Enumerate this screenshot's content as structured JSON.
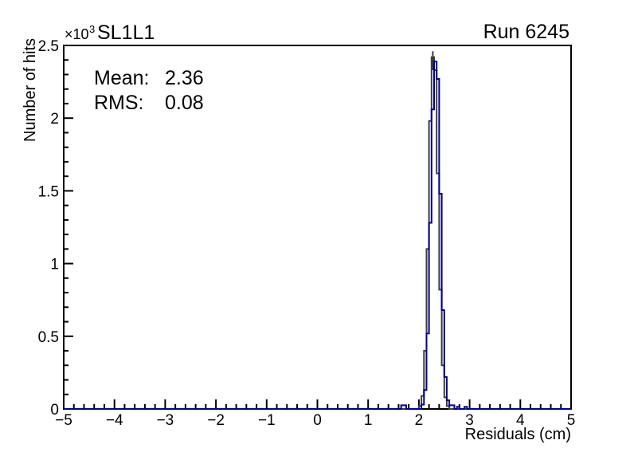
{
  "frame": {
    "background": "#ffffff",
    "axis_color": "#000000"
  },
  "header": {
    "title": "SL1L1",
    "run_label": "Run 6245",
    "y_multiplier_base": "×10",
    "y_multiplier_exp": "3"
  },
  "stats": {
    "mean_label": "Mean:",
    "mean_value": "2.36",
    "rms_label": "RMS:",
    "rms_value": "0.08"
  },
  "chart_data": {
    "type": "bar",
    "subtype": "step-histogram",
    "title": "SL1L1",
    "corner_label": "Run 6245",
    "xlabel": "Residuals (cm)",
    "ylabel": "Number of hits",
    "y_axis_multiplier": "×10^3",
    "xlim": [
      -5,
      5
    ],
    "ylim": [
      0,
      2500
    ],
    "grid": false,
    "legend": null,
    "x_major_tick_step": 1,
    "x_minor_tick_step": 0.2,
    "y_major_tick_step": 500,
    "y_minor_tick_step": 100,
    "x_tick_values": [
      -5,
      -4,
      -3,
      -2,
      -1,
      0,
      1,
      2,
      3,
      4,
      5
    ],
    "x_tick_labels": [
      "−5",
      "−4",
      "−3",
      "−2",
      "−1",
      "0",
      "1",
      "2",
      "3",
      "4",
      "5"
    ],
    "y_tick_values": [
      0,
      500,
      1000,
      1500,
      2000,
      2500
    ],
    "y_tick_labels": [
      "0",
      "0.5",
      "1",
      "1.5",
      "2",
      "2.5"
    ],
    "stats": {
      "mean": 2.36,
      "rms": 0.08
    },
    "series": [
      {
        "name": "overlay-dark",
        "color": "#3d3d3d",
        "line_width": 2,
        "bin_width": 0.05,
        "first_bin_left_edge": 2.0,
        "values": [
          20,
          90,
          400,
          1100,
          1980,
          2420,
          2330,
          1620,
          820,
          300,
          80,
          20
        ],
        "error_bar": {
          "x": 2.275,
          "y_low": 2330,
          "y_high": 2460
        }
      },
      {
        "name": "main-blue",
        "color": "#00008a",
        "line_width": 2,
        "bin_width": 0.05,
        "first_bin_left_edge": 1.65,
        "values": [
          25,
          25,
          0,
          0,
          0,
          0,
          0,
          0,
          30,
          130,
          520,
          1280,
          2060,
          2390,
          2270,
          1480,
          680,
          220,
          60,
          25,
          25,
          0,
          15,
          0,
          0,
          15,
          0
        ]
      }
    ]
  }
}
